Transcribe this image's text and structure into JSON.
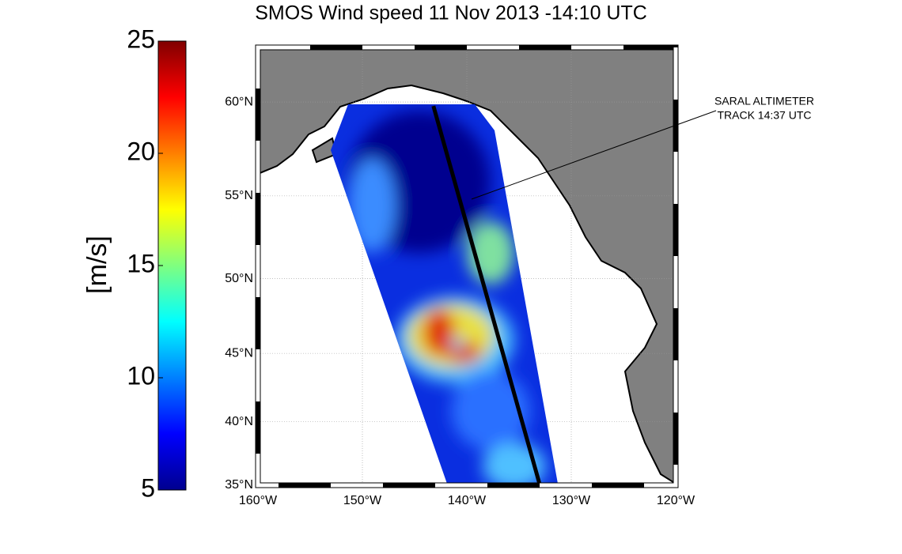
{
  "title": "SMOS Wind speed 11 Nov 2013 -14:10 UTC",
  "colorbar": {
    "label": "[m/s]",
    "lim": [
      5,
      25
    ],
    "ticks": [
      5,
      10,
      15,
      20,
      25
    ]
  },
  "map": {
    "latlim": [
      35,
      62.6
    ],
    "lonlim": [
      -160,
      -120
    ],
    "lat_ticks": [
      {
        "value": 35,
        "label": "35°N"
      },
      {
        "value": 40,
        "label": "40°N"
      },
      {
        "value": 45,
        "label": "45°N"
      },
      {
        "value": 50,
        "label": "50°N"
      },
      {
        "value": 55,
        "label": "55°N"
      },
      {
        "value": 60,
        "label": "60°N"
      }
    ],
    "lon_ticks": [
      {
        "value": -160,
        "label": "160°W"
      },
      {
        "value": -150,
        "label": "150°W"
      },
      {
        "value": -140,
        "label": "140°W"
      },
      {
        "value": -130,
        "label": "130°W"
      },
      {
        "value": -120,
        "label": "120°W"
      }
    ],
    "track": {
      "lon": [
        -143.2,
        -133
      ],
      "lat": [
        59.8,
        35
      ]
    },
    "annotation": [
      "SARAL ALTIMETER",
      "TRACK 14:37 UTC"
    ]
  }
}
